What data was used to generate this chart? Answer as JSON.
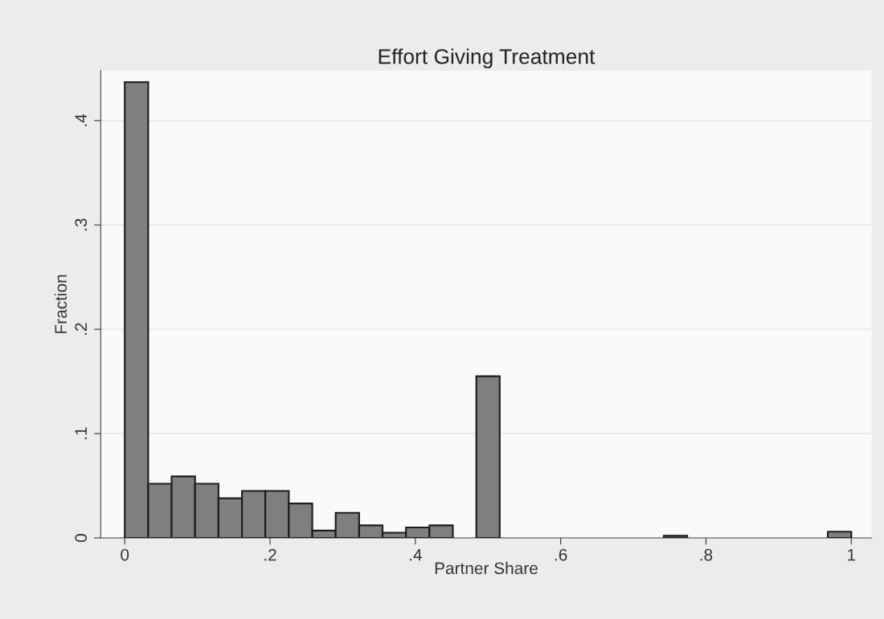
{
  "chart_data": {
    "type": "histogram",
    "title": "Effort Giving Treatment",
    "xlabel": "Partner Share",
    "ylabel": "Fraction",
    "bins": [
      0,
      0.0323,
      0.0645,
      0.0968,
      0.129,
      0.1613,
      0.1935,
      0.2258,
      0.2581,
      0.2903,
      0.3226,
      0.3548,
      0.3871,
      0.4194,
      0.4516,
      0.4839,
      0.5161,
      0.5484,
      0.5806,
      0.6129,
      0.6452,
      0.6774,
      0.7097,
      0.7419,
      0.7742,
      0.8065,
      0.8387,
      0.871,
      0.9032,
      0.9355,
      0.9677,
      1
    ],
    "values": [
      0.437,
      0.052,
      0.059,
      0.052,
      0.038,
      0.045,
      0.045,
      0.033,
      0.007,
      0.024,
      0.012,
      0.005,
      0.01,
      0.012,
      0,
      0.155,
      0,
      0,
      0,
      0,
      0,
      0,
      0,
      0.002,
      0,
      0,
      0,
      0,
      0,
      0,
      0.006
    ],
    "color": "#7f7f7f",
    "xlim": [
      -0.033,
      1.028
    ],
    "ylim": [
      0,
      0.448
    ],
    "xticks": [
      0,
      {
        "value": 0.2,
        "label": ".2"
      },
      {
        "value": 0.4,
        "label": ".4"
      },
      {
        "value": 0.6,
        "label": ".6"
      },
      {
        "value": 0.8,
        "label": ".8"
      },
      1
    ],
    "yticks": [
      0,
      {
        "value": 0.1,
        "label": ".1"
      },
      {
        "value": 0.2,
        "label": ".2"
      },
      {
        "value": 0.3,
        "label": ".3"
      },
      {
        "value": 0.4,
        "label": ".4"
      }
    ],
    "grid": "y"
  }
}
